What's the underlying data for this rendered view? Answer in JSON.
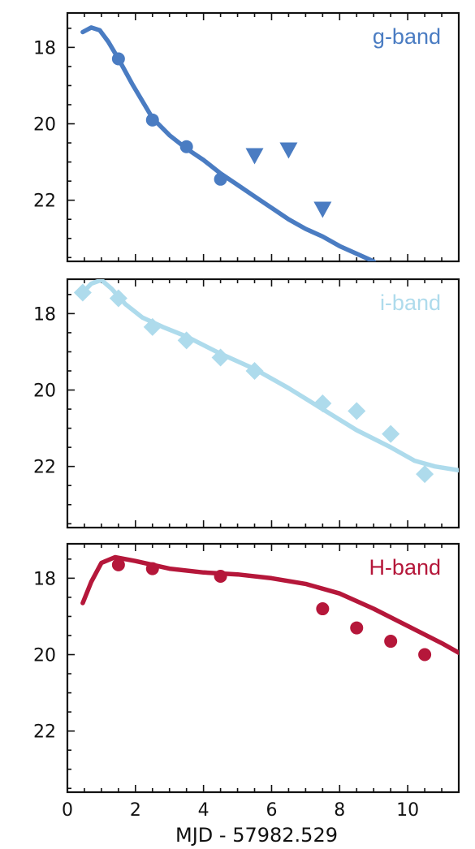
{
  "chart_data": {
    "type": "scatter",
    "xlabel": "MJD - 57982.529",
    "xlim": [
      0,
      11.5
    ],
    "x_ticks": [
      0,
      2,
      4,
      6,
      8,
      10
    ],
    "y_inverted": true,
    "ylim": [
      23.6,
      17.1
    ],
    "y_ticks": [
      18,
      20,
      22
    ],
    "panels": [
      {
        "label": "g-band",
        "color": "#4a7cc2",
        "label_position": "top-right",
        "ylim": [
          23.6,
          17.1
        ],
        "series": [
          {
            "kind": "model",
            "points": [
              [
                0.45,
                17.6
              ],
              [
                0.7,
                17.48
              ],
              [
                0.95,
                17.55
              ],
              [
                1.2,
                17.85
              ],
              [
                1.5,
                18.3
              ],
              [
                1.9,
                18.95
              ],
              [
                2.5,
                19.85
              ],
              [
                3.0,
                20.3
              ],
              [
                3.5,
                20.65
              ],
              [
                4.0,
                20.95
              ],
              [
                4.5,
                21.3
              ],
              [
                5.0,
                21.6
              ],
              [
                5.5,
                21.9
              ],
              [
                6.0,
                22.2
              ],
              [
                6.5,
                22.5
              ],
              [
                7.0,
                22.75
              ],
              [
                7.5,
                22.95
              ],
              [
                8.0,
                23.2
              ],
              [
                8.5,
                23.4
              ],
              [
                9.0,
                23.6
              ]
            ]
          },
          {
            "kind": "detections",
            "marker": "circle",
            "points": [
              [
                1.5,
                18.3
              ],
              [
                2.5,
                19.9
              ],
              [
                3.5,
                20.6
              ],
              [
                4.5,
                21.45
              ]
            ]
          },
          {
            "kind": "upper_limits",
            "marker": "triangle-down",
            "points": [
              [
                5.5,
                20.85
              ],
              [
                6.5,
                20.7
              ],
              [
                7.5,
                22.25
              ]
            ]
          }
        ]
      },
      {
        "label": "i-band",
        "color": "#aedbec",
        "label_position": "top-right",
        "ylim": [
          23.6,
          17.1
        ],
        "series": [
          {
            "kind": "model",
            "points": [
              [
                0.45,
                17.45
              ],
              [
                0.7,
                17.22
              ],
              [
                1.0,
                17.12
              ],
              [
                1.3,
                17.35
              ],
              [
                1.7,
                17.75
              ],
              [
                2.2,
                18.1
              ],
              [
                2.8,
                18.35
              ],
              [
                3.5,
                18.6
              ],
              [
                4.5,
                19.05
              ],
              [
                5.5,
                19.45
              ],
              [
                6.5,
                19.95
              ],
              [
                7.5,
                20.5
              ],
              [
                8.5,
                21.05
              ],
              [
                9.5,
                21.5
              ],
              [
                10.2,
                21.85
              ],
              [
                10.8,
                22.0
              ],
              [
                11.5,
                22.1
              ]
            ]
          },
          {
            "kind": "detections",
            "marker": "diamond",
            "points": [
              [
                0.45,
                17.45
              ],
              [
                1.5,
                17.6
              ],
              [
                2.5,
                18.35
              ],
              [
                3.5,
                18.7
              ],
              [
                4.5,
                19.15
              ],
              [
                5.5,
                19.5
              ],
              [
                7.5,
                20.35
              ],
              [
                8.5,
                20.55
              ],
              [
                9.5,
                21.15
              ],
              [
                10.5,
                22.2
              ]
            ]
          }
        ]
      },
      {
        "label": "H-band",
        "color": "#b5173a",
        "label_position": "top-right",
        "ylim": [
          23.6,
          17.1
        ],
        "series": [
          {
            "kind": "model",
            "points": [
              [
                0.45,
                18.65
              ],
              [
                0.7,
                18.1
              ],
              [
                1.0,
                17.6
              ],
              [
                1.4,
                17.45
              ],
              [
                2.0,
                17.55
              ],
              [
                3.0,
                17.75
              ],
              [
                4.0,
                17.85
              ],
              [
                5.0,
                17.9
              ],
              [
                6.0,
                18.0
              ],
              [
                7.0,
                18.15
              ],
              [
                8.0,
                18.4
              ],
              [
                9.0,
                18.8
              ],
              [
                10.0,
                19.25
              ],
              [
                11.0,
                19.7
              ],
              [
                11.5,
                19.95
              ]
            ]
          },
          {
            "kind": "detections",
            "marker": "circle",
            "points": [
              [
                1.5,
                17.65
              ],
              [
                2.5,
                17.75
              ],
              [
                4.5,
                17.95
              ],
              [
                7.5,
                18.8
              ],
              [
                8.5,
                19.3
              ],
              [
                9.5,
                19.65
              ],
              [
                10.5,
                20.0
              ]
            ]
          }
        ]
      }
    ]
  }
}
